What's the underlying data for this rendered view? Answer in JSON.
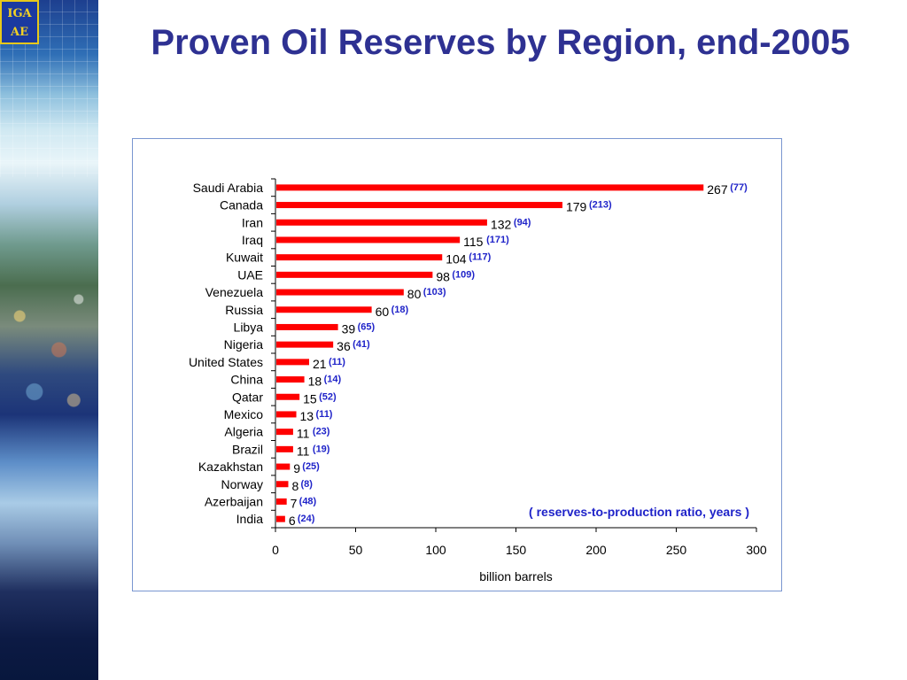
{
  "slide": {
    "title": "Proven Oil Reserves by Region, end-2005",
    "logo_lines": [
      "IGA",
      "AE"
    ]
  },
  "chart_data": {
    "type": "bar",
    "orientation": "horizontal",
    "categories": [
      "Saudi Arabia",
      "Canada",
      "Iran",
      "Iraq",
      "Kuwait",
      "UAE",
      "Venezuela",
      "Russia",
      "Libya",
      "Nigeria",
      "United States",
      "China",
      "Qatar",
      "Mexico",
      "Algeria",
      "Brazil",
      "Kazakhstan",
      "Norway",
      "Azerbaijan",
      "India"
    ],
    "series": [
      {
        "values": [
          267,
          179,
          132,
          115,
          104,
          98,
          80,
          60,
          39,
          36,
          21,
          18,
          15,
          13,
          11,
          11,
          9,
          8,
          7,
          6
        ],
        "annotations": [
          "(77)",
          "(213)",
          "(94)",
          "(171)",
          "(117)",
          "(109)",
          "(103)",
          "(18)",
          "(65)",
          "(41)",
          "(11)",
          "(14)",
          "(52)",
          "(11)",
          "(23)",
          "(19)",
          "(25)",
          "(8)",
          "(48)",
          "(24)"
        ]
      }
    ],
    "xlabel": "billion barrels",
    "ylabel": "",
    "xlim": [
      0,
      300
    ],
    "x_ticks": [
      0,
      50,
      100,
      150,
      200,
      250,
      300
    ],
    "annotation_note": "( reserves-to-production ratio, years )",
    "grid": false,
    "bar_color": "#ff0000",
    "annotation_color": "#1f23c9"
  }
}
